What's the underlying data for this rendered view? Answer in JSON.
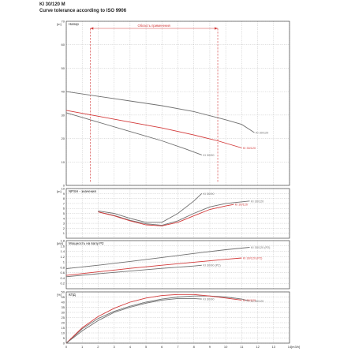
{
  "header": {
    "model": "KI 30/120 M",
    "tolerance_note": "Curve tolerance according to ISO 9906"
  },
  "colors": {
    "curve_dark": "#707070",
    "curve_red": "#d33a3a",
    "grid": "#b0b0b0",
    "frame": "#444444"
  },
  "chart_data": [
    {
      "type": "line",
      "title": "Напор",
      "yunit": "[m]",
      "xlim": [
        0,
        14
      ],
      "ylim": [
        0,
        70
      ],
      "yticks": [
        0,
        10,
        20,
        30,
        40,
        50,
        60,
        70
      ],
      "annotation": "Область применения",
      "range_x": [
        1.5,
        9.5
      ],
      "series": [
        {
          "name": "KI 30/120",
          "color": "#707070",
          "x": [
            0,
            2,
            4,
            6,
            8,
            10,
            11,
            11.8
          ],
          "y": [
            40,
            38,
            36,
            34,
            31.5,
            28,
            26,
            22.5
          ]
        },
        {
          "name": "KI 30/120",
          "color": "#d33a3a",
          "x": [
            0,
            2,
            4,
            6,
            8,
            9.5,
            10.5,
            11
          ],
          "y": [
            32,
            29.5,
            27,
            24.5,
            21.5,
            19,
            17,
            16
          ]
        },
        {
          "name": "KI 30/90",
          "color": "#707070",
          "x": [
            0,
            2,
            4,
            6,
            7.5,
            8.5
          ],
          "y": [
            31,
            27,
            23,
            19,
            15.5,
            13
          ]
        }
      ]
    },
    {
      "type": "line",
      "title": "NPSH - значения",
      "yunit": "[m]",
      "xlim": [
        0,
        14
      ],
      "ylim": [
        0,
        10
      ],
      "yticks": [
        1,
        2,
        3,
        4,
        5,
        6,
        7,
        8,
        9,
        10
      ],
      "series": [
        {
          "name": "KI 30/90",
          "color": "#707070",
          "x": [
            2,
            3,
            4,
            5,
            6,
            7,
            8,
            8.5
          ],
          "y": [
            5.5,
            5,
            4,
            3.2,
            3.2,
            5,
            7.5,
            9
          ]
        },
        {
          "name": "KI 30/120",
          "color": "#707070",
          "x": [
            2,
            3,
            4,
            5,
            6,
            7,
            8,
            9,
            10,
            11.5
          ],
          "y": [
            5.3,
            4.6,
            3.6,
            2.9,
            2.6,
            3.5,
            5,
            6.3,
            7,
            7.5
          ]
        },
        {
          "name": "KI 30/120",
          "color": "#d33a3a",
          "x": [
            2,
            3,
            4,
            5,
            6,
            7,
            8,
            9,
            10,
            10.5
          ],
          "y": [
            5.3,
            4.5,
            3.5,
            2.7,
            2.5,
            3.2,
            4.5,
            5.8,
            6.5,
            6.8
          ]
        }
      ]
    },
    {
      "type": "line",
      "title": "Мощность на валу P2",
      "yunit": "[kW]",
      "xlim": [
        0,
        14
      ],
      "ylim": [
        0,
        1.8
      ],
      "yticks": [
        0.2,
        0.4,
        0.6,
        0.8,
        1,
        1.2,
        1.4,
        1.6,
        1.8
      ],
      "series": [
        {
          "name": "KI 30/120 (P2)",
          "color": "#707070",
          "x": [
            0,
            2,
            4,
            6,
            8,
            10,
            11.5
          ],
          "y": [
            0.75,
            0.88,
            1.02,
            1.17,
            1.32,
            1.46,
            1.55
          ]
        },
        {
          "name": "KI 30/120 (P2)",
          "color": "#d33a3a",
          "x": [
            0,
            2,
            4,
            6,
            8,
            10,
            11
          ],
          "y": [
            0.5,
            0.63,
            0.76,
            0.88,
            0.99,
            1.1,
            1.15
          ]
        },
        {
          "name": "KI 30/90 (P2)",
          "color": "#707070",
          "x": [
            0,
            2,
            4,
            6,
            8,
            8.5
          ],
          "y": [
            0.45,
            0.56,
            0.66,
            0.76,
            0.85,
            0.88
          ]
        }
      ]
    },
    {
      "type": "line",
      "title": "КПД",
      "yunit": "[%]",
      "xlabel": "[m3/h]",
      "xlim": [
        0,
        14
      ],
      "ylim": [
        0,
        50
      ],
      "xticks": [
        0,
        1,
        2,
        3,
        4,
        5,
        6,
        7,
        8,
        9,
        10,
        11,
        12,
        13,
        14
      ],
      "yticks": [
        0,
        5,
        10,
        15,
        20,
        25,
        30,
        35,
        40,
        45,
        50
      ],
      "series": [
        {
          "name": "KI 30/120",
          "color": "#707070",
          "x": [
            0,
            1,
            2,
            3,
            4,
            5,
            6,
            7,
            8,
            9,
            10,
            11,
            11.5
          ],
          "y": [
            0,
            14,
            24,
            31,
            36,
            40,
            43,
            45,
            46,
            46,
            45,
            43,
            41
          ]
        },
        {
          "name": "KI 30/120",
          "color": "#d33a3a",
          "x": [
            0,
            1,
            2,
            3,
            4,
            5,
            6,
            7,
            8,
            9,
            10,
            11
          ],
          "y": [
            0,
            15,
            26,
            34,
            40,
            44,
            46.5,
            47.5,
            47.5,
            46,
            44,
            42
          ]
        },
        {
          "name": "KI 30/90",
          "color": "#707070",
          "x": [
            0,
            1,
            2,
            3,
            4,
            5,
            6,
            7,
            8,
            8.5
          ],
          "y": [
            0,
            12,
            22,
            30,
            35,
            39,
            42,
            43.5,
            43.5,
            43
          ]
        }
      ]
    }
  ]
}
